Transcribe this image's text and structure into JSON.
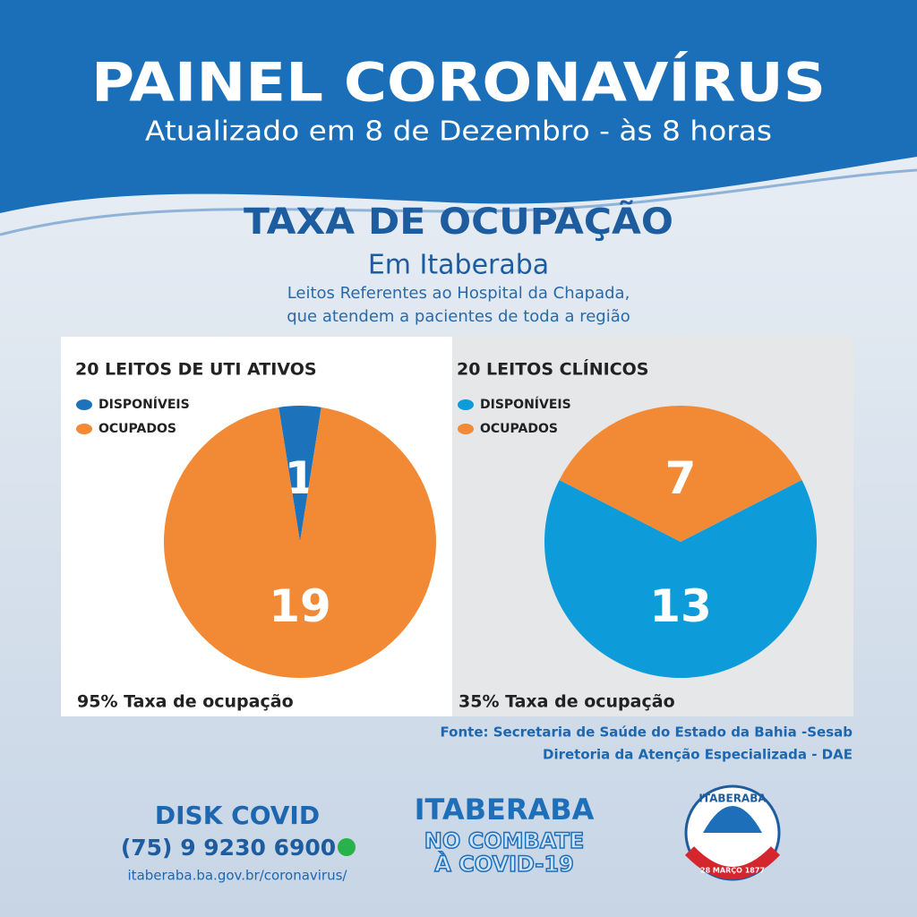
{
  "header": {
    "title": "PAINEL CORONAVÍRUS",
    "subtitle": "Atualizado em 8 de Dezembro - às 8 horas"
  },
  "section": {
    "title": "TAXA DE OCUPAÇÃO",
    "subtitle": "Em Itaberaba",
    "description": [
      "Leitos Referentes ao Hospital da Chapada,",
      "que atendem a pacientes de toda a região"
    ]
  },
  "chart_data": [
    {
      "type": "pie",
      "title": "20 LEITOS DE UTI ATIVOS",
      "categories": [
        "DISPONÍVEIS",
        "OCUPADOS"
      ],
      "values": [
        1,
        19
      ],
      "colors": [
        "#1c72bb",
        "#f28a35"
      ],
      "note": "95% Taxa de ocupação"
    },
    {
      "type": "pie",
      "title": "20 LEITOS CLÍNICOS",
      "categories": [
        "DISPONÍVEIS",
        "OCUPADOS"
      ],
      "values": [
        13,
        7
      ],
      "colors": [
        "#0e9bd9",
        "#f28a35"
      ],
      "note": "35% Taxa de ocupação"
    }
  ],
  "source": [
    "Fonte: Secretaria de Saúde do Estado da Bahia -Sesab",
    "Diretoria da Atenção Especializada - DAE"
  ],
  "footer": {
    "disk_title": "DISK COVID",
    "phone": "(75) 9 9230 6900",
    "website": "itaberaba.ba.gov.br/coronavirus/",
    "campaign": [
      "ITABERABA",
      "NO COMBATE",
      "À COVID-19"
    ],
    "logo": {
      "name": "ITABERABA",
      "date": "28 MARÇO 1877"
    }
  }
}
